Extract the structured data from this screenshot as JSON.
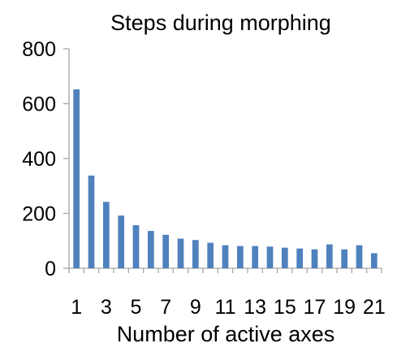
{
  "chart_data": {
    "type": "bar",
    "title": "Steps during morphing",
    "xlabel": "Number of active axes",
    "ylabel": "",
    "ylim": [
      0,
      800
    ],
    "yticks": [
      0,
      200,
      400,
      600,
      800
    ],
    "grid": false,
    "legend": "none",
    "categories": [
      1,
      2,
      3,
      4,
      5,
      6,
      7,
      8,
      9,
      10,
      11,
      12,
      13,
      14,
      15,
      16,
      17,
      18,
      19,
      20,
      21
    ],
    "xtick_labels": [
      "1",
      "3",
      "5",
      "7",
      "9",
      "11",
      "13",
      "15",
      "17",
      "19",
      "21"
    ],
    "series": [
      {
        "values": [
          652,
          338,
          242,
          192,
          157,
          136,
          122,
          108,
          103,
          93,
          84,
          81,
          81,
          79,
          75,
          72,
          69,
          87,
          69,
          84,
          55
        ]
      }
    ],
    "bar_color": "#4f81bd",
    "axis_color": "#a6a6a6"
  }
}
